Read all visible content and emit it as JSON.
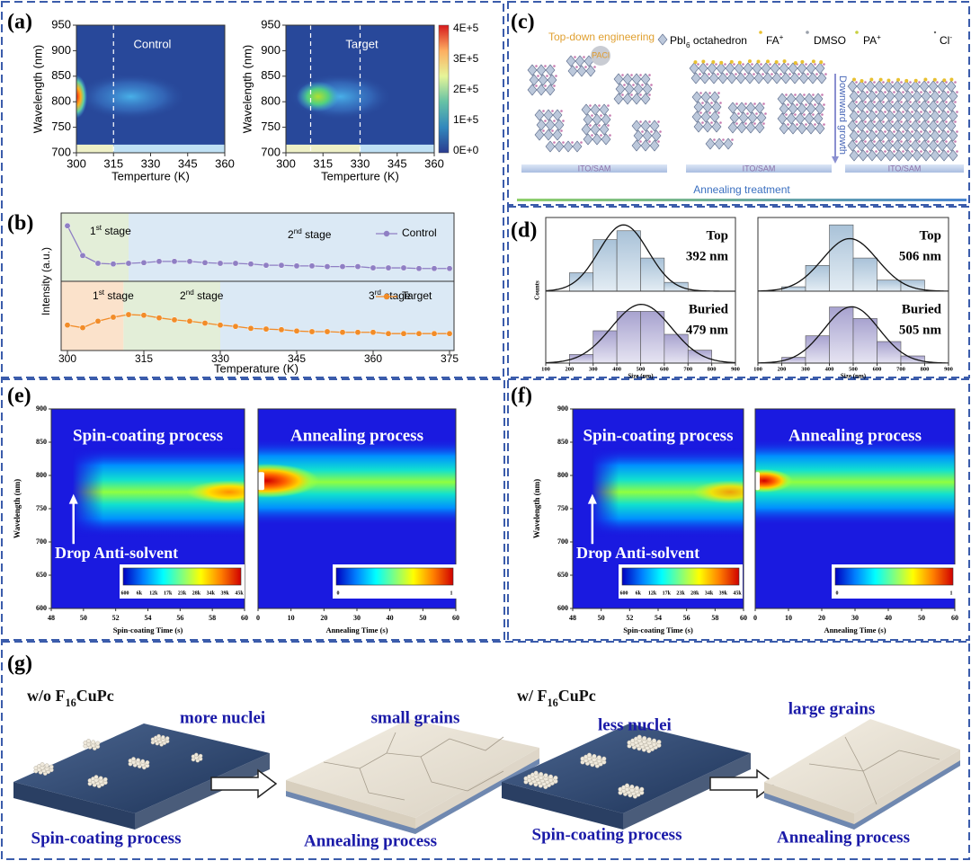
{
  "panels": {
    "a": {
      "label": "(a)",
      "ylabel": "Wavelength (nm)",
      "xlabel": "Temperture (K)",
      "ylim": [
        700,
        950
      ],
      "yticks": [
        950,
        900,
        850,
        800,
        750,
        700
      ],
      "xlim": [
        300,
        360
      ],
      "xticks": [
        300,
        315,
        330,
        345,
        360
      ],
      "maps": [
        {
          "title": "Control",
          "markers": [
            315
          ]
        },
        {
          "title": "Target",
          "markers": [
            310,
            330
          ]
        }
      ],
      "colorbar": [
        "4E+5",
        "3E+5",
        "2E+5",
        "1E+5",
        "0E+0"
      ]
    },
    "b": {
      "label": "(b)",
      "ylabel": "Intensity (a.u.)",
      "xlabel": "Temperature (K)",
      "xticks": [
        300,
        315,
        330,
        345,
        360,
        375
      ],
      "x": [
        300,
        303,
        306,
        309,
        312,
        315,
        318,
        321,
        324,
        327,
        330,
        333,
        336,
        339,
        342,
        345,
        348,
        351,
        354,
        357,
        360,
        363,
        366,
        369,
        372,
        375
      ],
      "series": [
        {
          "name": "Control",
          "color": "#8f7fc4",
          "ylim": [
            0,
            1
          ],
          "values": [
            0.83,
            0.37,
            0.25,
            0.24,
            0.25,
            0.26,
            0.28,
            0.28,
            0.28,
            0.26,
            0.25,
            0.25,
            0.24,
            0.22,
            0.22,
            0.21,
            0.21,
            0.2,
            0.2,
            0.2,
            0.18,
            0.18,
            0.18,
            0.17,
            0.17,
            0.17
          ],
          "stage_edges": [
            312
          ],
          "stages": [
            {
              "num": "1",
              "sup": "st",
              "text": " stage"
            },
            {
              "num": "2",
              "sup": "nd",
              "text": " stage"
            }
          ]
        },
        {
          "name": "Target",
          "color": "#f28c28",
          "ylim": [
            0,
            1
          ],
          "values": [
            0.36,
            0.32,
            0.42,
            0.48,
            0.52,
            0.51,
            0.47,
            0.44,
            0.42,
            0.39,
            0.36,
            0.34,
            0.31,
            0.3,
            0.29,
            0.27,
            0.26,
            0.26,
            0.25,
            0.25,
            0.25,
            0.23,
            0.23,
            0.23,
            0.23,
            0.23
          ],
          "stage_edges": [
            311,
            330
          ],
          "stages": [
            {
              "num": "1",
              "sup": "st",
              "text": " stage"
            },
            {
              "num": "2",
              "sup": "nd",
              "text": " stage"
            },
            {
              "num": "3",
              "sup": "rd",
              "text": " stage"
            }
          ]
        }
      ]
    },
    "c": {
      "label": "(c)",
      "title": "Top-down engineering",
      "legend": [
        {
          "text": "PbI",
          "sub": "6",
          "rest": " octahedron"
        },
        {
          "text": "FA",
          "sup": "+"
        },
        {
          "text": "DMSO"
        },
        {
          "text": "PA",
          "sup": "+"
        },
        {
          "text": "Cl",
          "sup": "-"
        }
      ],
      "reagent": "PACl",
      "arrow": "Downward growth",
      "substrate": "ITO/SAM",
      "process": "Annealing treatment"
    },
    "d": {
      "label": "(d)",
      "ylabel": "Counts",
      "xlabel": "Size (nm)",
      "xticks": [
        100,
        200,
        300,
        400,
        500,
        600,
        700,
        800,
        900
      ],
      "bins": [
        100,
        200,
        300,
        400,
        500,
        600,
        700,
        800,
        900
      ],
      "hists": [
        [
          {
            "title": "Top",
            "size": "392 nm",
            "counts": [
              0,
              0.25,
              0.7,
              0.82,
              0.45,
              0.12,
              0,
              0
            ]
          },
          {
            "title": "Buried",
            "size": "479 nm",
            "counts": [
              0,
              0.12,
              0.45,
              0.72,
              0.72,
              0.4,
              0.18,
              0
            ]
          }
        ],
        [
          {
            "title": "Top",
            "size": "506 nm",
            "counts": [
              0,
              0.06,
              0.35,
              0.9,
              0.45,
              0.15,
              0.15,
              0
            ]
          },
          {
            "title": "Buried",
            "size": "505 nm",
            "counts": [
              0,
              0.08,
              0.38,
              0.78,
              0.62,
              0.3,
              0.1,
              0
            ]
          }
        ]
      ]
    },
    "e": {
      "label": "(e)",
      "ylabel": "Wavelength (nm)",
      "ylim": [
        600,
        900
      ],
      "yticks": [
        900,
        850,
        800,
        750,
        700,
        650,
        600
      ],
      "annotation": "Drop Anti-solvent",
      "maps": [
        {
          "title": "Spin-coating process",
          "xlabel": "Spin-coating Time (s)",
          "xlim": [
            48,
            60
          ],
          "xticks": [
            48,
            50,
            52,
            54,
            56,
            58,
            60
          ],
          "colorbar": [
            600,
            "6k",
            "12k",
            "17k",
            "23k",
            "28k",
            "34k",
            "39k",
            "45k"
          ]
        },
        {
          "title": "Annealing process",
          "xlabel": "Annealing Time (s)",
          "xlim": [
            0,
            60
          ],
          "xticks": [
            0,
            10,
            20,
            30,
            40,
            50,
            60
          ],
          "colorbar": [
            0,
            1
          ]
        }
      ]
    },
    "f": {
      "label": "(f)",
      "ylabel": "Wavelength (nm)",
      "ylim": [
        600,
        900
      ],
      "yticks": [
        900,
        850,
        800,
        750,
        700,
        650,
        600
      ],
      "annotation": "Drop Anti-solvent",
      "maps": [
        {
          "title": "Spin-coating process",
          "xlabel": "Spin-coating Time (s)",
          "xlim": [
            48,
            60
          ],
          "xticks": [
            48,
            50,
            52,
            54,
            56,
            58,
            60
          ],
          "colorbar": [
            600,
            "6k",
            "12k",
            "17k",
            "23k",
            "28k",
            "34k",
            "39k",
            "45k"
          ]
        },
        {
          "title": "Annealing process",
          "xlabel": "Annealing Time (s)",
          "xlim": [
            0,
            60
          ],
          "xticks": [
            0,
            10,
            20,
            30,
            40,
            50,
            60
          ],
          "colorbar": [
            0,
            1
          ]
        }
      ]
    },
    "g": {
      "label": "(g)",
      "groups": [
        {
          "condition": {
            "text": "w/o F",
            "sub": "16",
            "rest": "CuPc"
          },
          "nuclei": "more nuclei",
          "grains": "small grains",
          "step1": "Spin-coating process",
          "step2": "Annealing process"
        },
        {
          "condition": {
            "text": "w/ F",
            "sub": "16",
            "rest": "CuPc"
          },
          "nuclei": "less nuclei",
          "grains": "large grains",
          "step1": "Spin-coating process",
          "step2": "Annealing process"
        }
      ]
    }
  }
}
